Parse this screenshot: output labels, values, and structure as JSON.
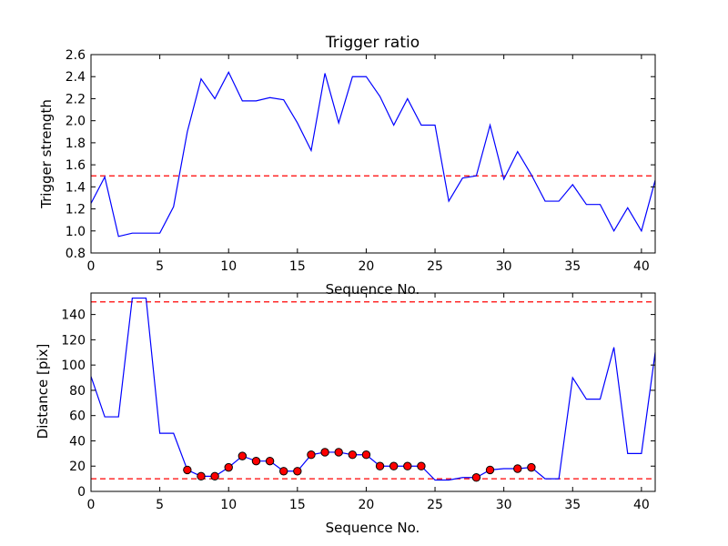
{
  "colors": {
    "series_line": "#0000ff",
    "threshold_line": "#ff0000",
    "marker_fill": "#ff0000",
    "marker_edge": "#000000"
  },
  "chart_data": [
    {
      "type": "line",
      "title": "Trigger ratio",
      "xlabel": "Sequence No.",
      "ylabel": "Trigger strength",
      "xlim": [
        0,
        41
      ],
      "ylim": [
        0.8,
        2.6
      ],
      "xticks": [
        "0",
        "5",
        "10",
        "15",
        "20",
        "25",
        "30",
        "35",
        "40"
      ],
      "yticks": [
        "0.8",
        "1.0",
        "1.2",
        "1.4",
        "1.6",
        "1.8",
        "2.0",
        "2.2",
        "2.4",
        "2.6"
      ],
      "grid": false,
      "series": [
        {
          "x": [
            0,
            1,
            2,
            3,
            4,
            5,
            6,
            7,
            8,
            9,
            10,
            11,
            12,
            13,
            14,
            15,
            16,
            17,
            18,
            19,
            20,
            21,
            22,
            23,
            24,
            25,
            26,
            27,
            28,
            29,
            30,
            31,
            32,
            33,
            34,
            35,
            36,
            37,
            38,
            39,
            40,
            41
          ],
          "values": [
            1.25,
            1.49,
            0.95,
            0.98,
            0.98,
            0.98,
            1.22,
            1.9,
            2.38,
            2.2,
            2.44,
            2.18,
            2.18,
            2.21,
            2.19,
            1.98,
            1.73,
            2.43,
            1.98,
            2.4,
            2.4,
            2.22,
            1.96,
            2.2,
            1.96,
            1.96,
            1.27,
            1.48,
            1.5,
            1.96,
            1.47,
            1.72,
            1.51,
            1.27,
            1.27,
            1.42,
            1.24,
            1.24,
            1.0,
            1.21,
            1.0,
            1.46
          ]
        }
      ],
      "threshold_lines": [
        {
          "y": 1.5,
          "style": "dashed"
        }
      ]
    },
    {
      "type": "line",
      "title": "",
      "xlabel": "Sequence No.",
      "ylabel": "Distance [pix]",
      "xlim": [
        0,
        41
      ],
      "ylim": [
        0,
        157
      ],
      "xticks": [
        "0",
        "5",
        "10",
        "15",
        "20",
        "25",
        "30",
        "35",
        "40"
      ],
      "yticks": [
        "0",
        "20",
        "40",
        "60",
        "80",
        "100",
        "120",
        "140"
      ],
      "grid": false,
      "series": [
        {
          "x": [
            0,
            1,
            2,
            3,
            4,
            5,
            6,
            7,
            8,
            9,
            10,
            11,
            12,
            13,
            14,
            15,
            16,
            17,
            18,
            19,
            20,
            21,
            22,
            23,
            24,
            25,
            26,
            27,
            28,
            29,
            30,
            31,
            32,
            33,
            34,
            35,
            36,
            37,
            38,
            39,
            40,
            41
          ],
          "values": [
            91,
            59,
            59,
            153,
            153,
            46,
            46,
            17,
            12,
            12,
            19,
            28,
            24,
            24,
            16,
            16,
            29,
            31,
            31,
            29,
            29,
            20,
            20,
            20,
            20,
            9,
            9,
            11,
            11,
            17,
            18,
            18,
            19,
            10,
            10,
            90,
            73,
            73,
            114,
            30,
            30,
            110
          ],
          "highlighted_points": [
            7,
            8,
            9,
            10,
            11,
            12,
            13,
            14,
            15,
            16,
            17,
            18,
            19,
            20,
            21,
            22,
            23,
            24,
            28,
            29,
            31,
            32
          ]
        }
      ],
      "threshold_lines": [
        {
          "y": 150,
          "style": "dashed"
        },
        {
          "y": 10,
          "style": "dashed"
        }
      ]
    }
  ]
}
